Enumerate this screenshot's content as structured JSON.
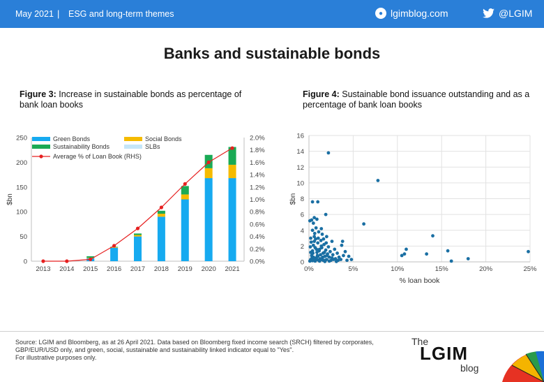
{
  "header": {
    "date": "May 2021",
    "separator": "|",
    "theme": "ESG and long-term themes",
    "site": "lgimblog.com",
    "handle": "@LGIM",
    "bar_color": "#2a7fd8"
  },
  "page_title": "Banks and sustainable bonds",
  "figure3": {
    "label": "Figure 3:",
    "title": " Increase in sustainable bonds as percentage of bank loan books"
  },
  "figure4": {
    "label": "Figure 4:",
    "title": " Sustainable bond issuance outstanding and as a percentage of bank loan books"
  },
  "footer": {
    "source": "Source: LGIM and Bloomberg, as at 26 April 2021. Data based on Bloomberg fixed income search (SRCH) filtered by corporates, GBP/EUR/USD only, and green, social, sustainable and sustainability linked indicator equal to \"Yes\".",
    "note": "For illustrative purposes only.",
    "logo_the": "The",
    "logo_main": "LGIM",
    "logo_blog": "blog"
  },
  "chart_data": [
    {
      "type": "bar",
      "stacked": true,
      "categories": [
        "2013",
        "2014",
        "2015",
        "2016",
        "2017",
        "2018",
        "2019",
        "2020",
        "2021"
      ],
      "series": [
        {
          "name": "Green Bonds",
          "color": "#16aaf0",
          "values": [
            0,
            0,
            6,
            27,
            50,
            90,
            125,
            168,
            168
          ]
        },
        {
          "name": "Social Bonds",
          "color": "#f5bb00",
          "values": [
            0,
            0,
            1,
            1,
            3,
            6,
            10,
            20,
            27
          ]
        },
        {
          "name": "Sustainability Bonds",
          "color": "#1aaa55",
          "values": [
            0,
            0,
            3,
            1,
            3,
            6,
            17,
            27,
            36
          ]
        },
        {
          "name": "SLBs",
          "color": "#c5e6f8",
          "values": [
            0,
            0,
            0,
            0,
            0,
            0,
            0,
            0,
            0
          ]
        }
      ],
      "line_series": {
        "name": "Average % of Loan Book (RHS)",
        "color": "#e62020",
        "values": [
          0.0,
          0.0,
          0.03,
          0.25,
          0.53,
          0.87,
          1.25,
          1.6,
          1.83
        ]
      },
      "ylabel": "$bn",
      "ylim": [
        0,
        250
      ],
      "yticks": [
        "0",
        "50",
        "100",
        "150",
        "200",
        "250"
      ],
      "y2lim": [
        0,
        2.0
      ],
      "y2ticks": [
        "0.0%",
        "0.2%",
        "0.4%",
        "0.6%",
        "0.8%",
        "1.0%",
        "1.2%",
        "1.4%",
        "1.6%",
        "1.8%",
        "2.0%"
      ],
      "legend": "top-left",
      "grid": false
    },
    {
      "type": "scatter",
      "color": "#1a6fa3",
      "xlabel": "% loan book",
      "ylabel": "$bn",
      "xlim": [
        0,
        25
      ],
      "ylim": [
        0,
        16
      ],
      "xticks": [
        "0%",
        "5%",
        "10%",
        "15%",
        "20%",
        "25%"
      ],
      "yticks": [
        "0",
        "2",
        "4",
        "6",
        "8",
        "10",
        "12",
        "14",
        "16"
      ],
      "grid": true,
      "points": [
        [
          2.2,
          13.8
        ],
        [
          7.8,
          10.3
        ],
        [
          0.4,
          7.6
        ],
        [
          1.0,
          7.6
        ],
        [
          1.9,
          6.0
        ],
        [
          6.2,
          4.8
        ],
        [
          0.3,
          5.3
        ],
        [
          0.9,
          5.4
        ],
        [
          0.6,
          5.6
        ],
        [
          0.1,
          5.2
        ],
        [
          0.5,
          4.9
        ],
        [
          14.0,
          3.3
        ],
        [
          0.2,
          3.0
        ],
        [
          0.6,
          3.2
        ],
        [
          1.1,
          3.8
        ],
        [
          0.8,
          4.3
        ],
        [
          1.4,
          4.2
        ],
        [
          0.4,
          4.0
        ],
        [
          1.5,
          3.5
        ],
        [
          2.0,
          3.2
        ],
        [
          2.6,
          2.6
        ],
        [
          3.8,
          2.6
        ],
        [
          3.7,
          2.1
        ],
        [
          11.0,
          1.6
        ],
        [
          10.8,
          1.0
        ],
        [
          10.5,
          0.8
        ],
        [
          13.3,
          1.0
        ],
        [
          15.7,
          1.4
        ],
        [
          16.1,
          0.1
        ],
        [
          18.0,
          0.4
        ],
        [
          24.8,
          1.3
        ],
        [
          0.2,
          0.3
        ],
        [
          0.3,
          0.8
        ],
        [
          0.4,
          1.4
        ],
        [
          0.5,
          2.1
        ],
        [
          0.6,
          2.6
        ],
        [
          0.7,
          1.8
        ],
        [
          0.8,
          0.5
        ],
        [
          0.9,
          1.2
        ],
        [
          1.0,
          2.4
        ],
        [
          1.1,
          0.2
        ],
        [
          1.2,
          1.6
        ],
        [
          1.3,
          0.9
        ],
        [
          1.4,
          2.0
        ],
        [
          1.5,
          0.4
        ],
        [
          1.6,
          1.1
        ],
        [
          1.7,
          2.2
        ],
        [
          1.8,
          0.7
        ],
        [
          1.9,
          1.5
        ],
        [
          2.0,
          0.3
        ],
        [
          2.1,
          1.0
        ],
        [
          2.2,
          1.9
        ],
        [
          2.3,
          0.6
        ],
        [
          2.4,
          1.3
        ],
        [
          2.5,
          0.2
        ],
        [
          2.7,
          0.9
        ],
        [
          2.9,
          1.6
        ],
        [
          3.0,
          0.4
        ],
        [
          3.2,
          1.1
        ],
        [
          3.4,
          0.6
        ],
        [
          3.6,
          0.3
        ],
        [
          3.9,
          0.8
        ],
        [
          4.1,
          1.3
        ],
        [
          4.3,
          0.2
        ],
        [
          4.5,
          0.7
        ],
        [
          4.8,
          0.3
        ],
        [
          0.15,
          1.9
        ],
        [
          0.25,
          2.5
        ],
        [
          0.35,
          0.5
        ],
        [
          0.45,
          1.1
        ],
        [
          0.55,
          0.2
        ],
        [
          0.65,
          3.6
        ],
        [
          0.75,
          2.9
        ],
        [
          0.85,
          1.6
        ],
        [
          0.95,
          0.8
        ],
        [
          1.05,
          3.0
        ],
        [
          1.15,
          1.4
        ],
        [
          1.25,
          0.4
        ],
        [
          1.35,
          2.7
        ],
        [
          1.45,
          1.8
        ],
        [
          1.55,
          0.6
        ],
        [
          1.65,
          2.9
        ],
        [
          1.75,
          1.2
        ],
        [
          1.85,
          0.2
        ],
        [
          1.95,
          2.4
        ],
        [
          2.05,
          0.8
        ],
        [
          0.1,
          0.1
        ],
        [
          0.2,
          1.2
        ],
        [
          0.3,
          0.2
        ],
        [
          0.5,
          0.6
        ],
        [
          0.7,
          0.1
        ],
        [
          0.9,
          0.3
        ],
        [
          1.2,
          0.1
        ],
        [
          1.6,
          0.2
        ],
        [
          2.3,
          0.1
        ],
        [
          2.8,
          0.3
        ],
        [
          3.3,
          0.2
        ],
        [
          0.4,
          0.15
        ],
        [
          0.6,
          0.45
        ],
        [
          1.0,
          0.7
        ],
        [
          1.4,
          0.3
        ],
        [
          1.8,
          0.05
        ],
        [
          2.6,
          0.5
        ],
        [
          3.1,
          0.05
        ]
      ]
    }
  ]
}
